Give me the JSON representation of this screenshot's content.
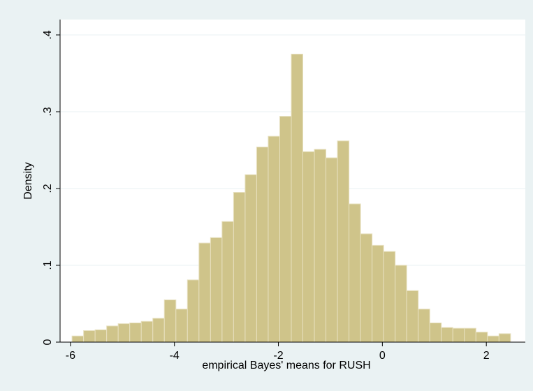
{
  "chart_data": {
    "type": "bar",
    "subtype": "histogram",
    "xlabel": "empirical Bayes' means for RUSH",
    "ylabel": "Density",
    "xlim": [
      -6.2,
      2.75
    ],
    "ylim": [
      0,
      0.42
    ],
    "x_ticks": [
      -6,
      -4,
      -2,
      0,
      2
    ],
    "x_tick_labels": [
      "-6",
      "-4",
      "-2",
      "0",
      "2"
    ],
    "y_ticks": [
      0,
      0.1,
      0.2,
      0.3,
      0.4
    ],
    "y_tick_labels": [
      "0",
      ".1",
      ".2",
      ".3",
      ".4"
    ],
    "grid": true,
    "bin_start": -5.97,
    "bin_width": 0.222,
    "values": [
      0.008,
      0.015,
      0.016,
      0.021,
      0.024,
      0.025,
      0.027,
      0.031,
      0.055,
      0.043,
      0.081,
      0.129,
      0.136,
      0.157,
      0.195,
      0.218,
      0.254,
      0.268,
      0.294,
      0.375,
      0.248,
      0.251,
      0.24,
      0.262,
      0.18,
      0.141,
      0.126,
      0.118,
      0.1,
      0.067,
      0.043,
      0.025,
      0.019,
      0.018,
      0.018,
      0.013,
      0.008,
      0.011
    ],
    "bar_color": "#cfc48a",
    "bar_edge_color": "#e7e0bf",
    "plot_background": "#ffffff",
    "outer_background": "#eaf2f3",
    "grid_color": "#eaf2f3"
  }
}
